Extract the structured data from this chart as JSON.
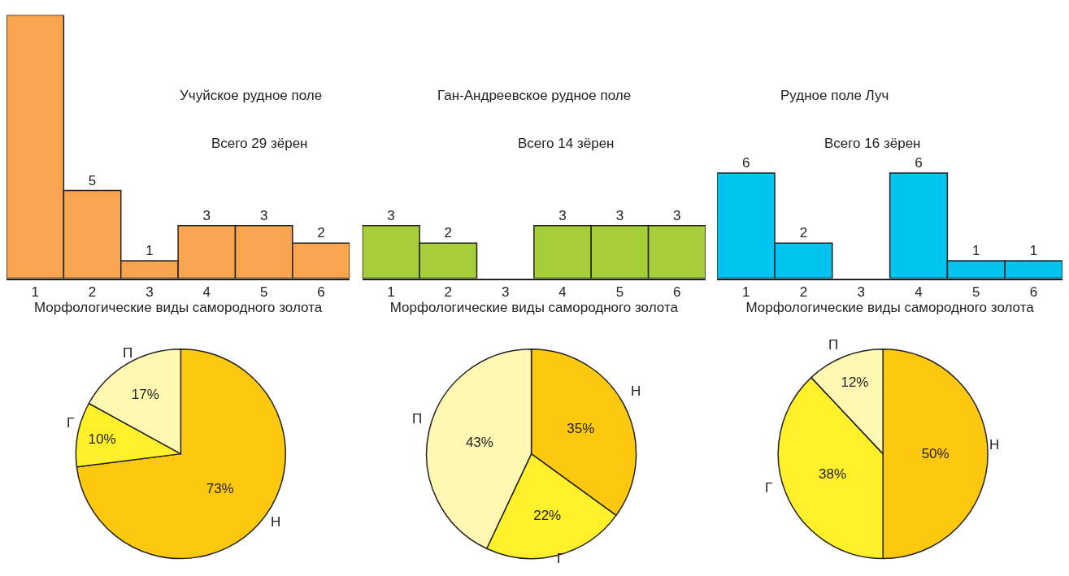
{
  "chart_data": [
    {
      "type": "bar",
      "title": "Учуйское рудное поле",
      "subtitle": "Всего 29 зёрен",
      "xlabel": "Морфологические виды самородного золота",
      "categories": [
        "1",
        "2",
        "3",
        "4",
        "5",
        "6"
      ],
      "values": [
        15,
        5,
        1,
        3,
        3,
        2
      ],
      "value_labels": [
        null,
        "5",
        "1",
        "3",
        "3",
        "2"
      ],
      "color": "#f9a54f",
      "tick_labels": "x"
    },
    {
      "type": "bar",
      "title": "Ган-Андреевское рудное поле",
      "subtitle": "Всего 14 зёрен",
      "xlabel": "Морфологические виды самородного золота",
      "categories": [
        "1",
        "2",
        "3",
        "4",
        "5",
        "6"
      ],
      "values": [
        3,
        2,
        0,
        3,
        3,
        3
      ],
      "value_labels": [
        "3",
        "2",
        null,
        "3",
        "3",
        "3"
      ],
      "color": "#a6ce39",
      "tick_labels": "x"
    },
    {
      "type": "bar",
      "title": "Рудное поле Луч",
      "subtitle": "Всего 16 зёрен",
      "xlabel": "Морфологические виды самородного золота",
      "categories": [
        "1",
        "2",
        "3",
        "4",
        "5",
        "6"
      ],
      "values": [
        6,
        2,
        0,
        6,
        1,
        1
      ],
      "value_labels": [
        "6",
        "2",
        null,
        "6",
        "1",
        "1"
      ],
      "color": "#00c4f0",
      "tick_labels": "x"
    },
    {
      "type": "pie",
      "categories": [
        "Н",
        "Г",
        "П"
      ],
      "values": [
        73,
        10,
        17
      ],
      "value_labels": [
        "73%",
        "10%",
        "17%"
      ],
      "colors": [
        "#fdc80d",
        "#fff02a",
        "#fff8b3"
      ]
    },
    {
      "type": "pie",
      "categories": [
        "Н",
        "Г",
        "П"
      ],
      "values": [
        35,
        22,
        43
      ],
      "value_labels": [
        "35%",
        "22%",
        "43%"
      ],
      "colors": [
        "#fdc80d",
        "#fff02a",
        "#fff8b3"
      ]
    },
    {
      "type": "pie",
      "categories": [
        "Н",
        "Г",
        "П"
      ],
      "values": [
        50,
        38,
        12
      ],
      "value_labels": [
        "50%",
        "38%",
        "12%"
      ],
      "colors": [
        "#fdc80d",
        "#fff02a",
        "#fff8b3"
      ]
    }
  ]
}
